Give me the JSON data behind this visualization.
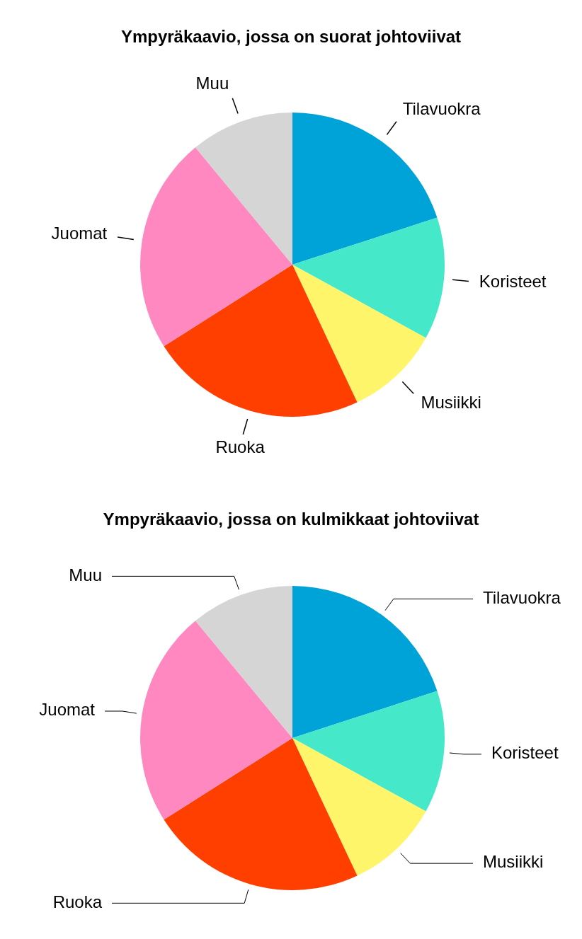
{
  "chart_data": [
    {
      "type": "pie",
      "title": "Ympyräkaavio, jossa on suorat johtoviivat",
      "categories": [
        "Tilavuokra",
        "Koristeet",
        "Musiikki",
        "Ruoka",
        "Juomat",
        "Muu"
      ],
      "values": [
        20,
        13,
        10,
        23,
        23,
        11
      ],
      "colors": [
        "#00a3d8",
        "#45e8c8",
        "#fff56a",
        "#ff3f00",
        "#ff88c0",
        "#d5d5d5"
      ]
    },
    {
      "type": "pie",
      "title": "Ympyräkaavio, jossa on kulmikkaat johtoviivat",
      "categories": [
        "Tilavuokra",
        "Koristeet",
        "Musiikki",
        "Ruoka",
        "Juomat",
        "Muu"
      ],
      "values": [
        20,
        13,
        10,
        23,
        23,
        11
      ],
      "colors": [
        "#00a3d8",
        "#45e8c8",
        "#fff56a",
        "#ff3f00",
        "#ff88c0",
        "#d5d5d5"
      ]
    }
  ]
}
